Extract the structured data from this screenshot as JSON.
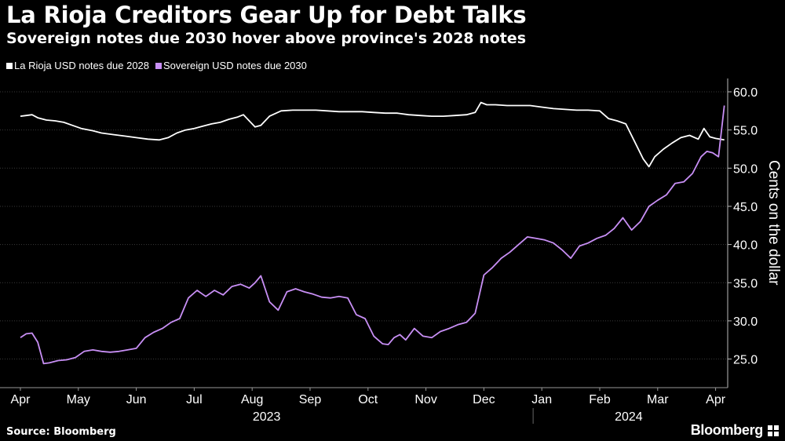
{
  "header": {
    "title": "La Rioja Creditors Gear Up for Debt Talks",
    "subtitle": "Sovereign notes due 2030 hover above province's 2028 notes"
  },
  "footer": {
    "source": "Source: Bloomberg",
    "brand": "Bloomberg"
  },
  "chart_data": {
    "type": "line",
    "title": "La Rioja Creditors Gear Up for Debt Talks",
    "subtitle": "Sovereign notes due 2030 hover above province's 2028 notes",
    "ylabel": "Cents on the dollar",
    "xlabel": "",
    "ylim": [
      21,
      62
    ],
    "yticks": [
      25.0,
      30.0,
      35.0,
      40.0,
      45.0,
      50.0,
      55.0,
      60.0
    ],
    "ytick_labels": [
      "25.0",
      "30.0",
      "35.0",
      "40.0",
      "45.0",
      "50.0",
      "55.0",
      "60.0"
    ],
    "xlim": [
      0,
      12.3
    ],
    "month_labels": [
      "Apr",
      "May",
      "Jun",
      "Jul",
      "Aug",
      "Sep",
      "Oct",
      "Nov",
      "Dec",
      "Jan",
      "Feb",
      "Mar",
      "Apr"
    ],
    "year_labels": [
      {
        "label": "2023",
        "x": 4.25
      },
      {
        "label": "2024",
        "x": 10.5
      }
    ],
    "year_divider_x": 8.85,
    "grid": true,
    "legend_position": "top-left",
    "series": [
      {
        "name": "La Rioja USD notes due 2028",
        "color": "#ffffff",
        "x": [
          0.0,
          0.1,
          0.2,
          0.3,
          0.45,
          0.6,
          0.75,
          0.9,
          1.05,
          1.25,
          1.4,
          1.6,
          1.8,
          2.0,
          2.2,
          2.4,
          2.55,
          2.7,
          2.85,
          3.0,
          3.15,
          3.3,
          3.45,
          3.6,
          3.75,
          3.85,
          3.95,
          4.05,
          4.15,
          4.3,
          4.5,
          4.7,
          4.9,
          5.1,
          5.3,
          5.5,
          5.7,
          5.9,
          6.1,
          6.3,
          6.5,
          6.7,
          6.9,
          7.1,
          7.3,
          7.5,
          7.7,
          7.85,
          7.95,
          8.05,
          8.2,
          8.4,
          8.6,
          8.8,
          9.0,
          9.2,
          9.4,
          9.6,
          9.8,
          10.0,
          10.15,
          10.3,
          10.45,
          10.6,
          10.75,
          10.85,
          10.95,
          11.1,
          11.25,
          11.4,
          11.55,
          11.7,
          11.8,
          11.9,
          12.0,
          12.15
        ],
        "values": [
          56.8,
          56.9,
          57.0,
          56.6,
          56.3,
          56.2,
          56.0,
          55.6,
          55.2,
          54.9,
          54.6,
          54.4,
          54.2,
          54.0,
          53.8,
          53.7,
          54.0,
          54.6,
          55.0,
          55.2,
          55.5,
          55.8,
          56.0,
          56.4,
          56.7,
          57.0,
          56.2,
          55.4,
          55.6,
          56.8,
          57.5,
          57.6,
          57.6,
          57.6,
          57.5,
          57.4,
          57.4,
          57.4,
          57.3,
          57.2,
          57.2,
          57.0,
          56.9,
          56.8,
          56.8,
          56.9,
          57.0,
          57.3,
          58.6,
          58.3,
          58.3,
          58.2,
          58.2,
          58.2,
          58.0,
          57.8,
          57.7,
          57.6,
          57.6,
          57.5,
          56.5,
          56.2,
          55.8,
          53.5,
          51.2,
          50.2,
          51.5,
          52.5,
          53.3,
          54.0,
          54.3,
          53.8,
          55.2,
          54.1,
          53.9,
          53.7
        ]
      },
      {
        "name": "Sovereign USD notes due 2030",
        "color": "#c88ff5",
        "x": [
          0.0,
          0.1,
          0.2,
          0.3,
          0.4,
          0.5,
          0.65,
          0.8,
          0.95,
          1.1,
          1.25,
          1.4,
          1.55,
          1.7,
          1.85,
          2.0,
          2.15,
          2.3,
          2.45,
          2.6,
          2.75,
          2.9,
          3.05,
          3.2,
          3.35,
          3.5,
          3.65,
          3.8,
          3.95,
          4.05,
          4.15,
          4.3,
          4.45,
          4.6,
          4.75,
          4.9,
          5.05,
          5.2,
          5.35,
          5.5,
          5.65,
          5.8,
          5.95,
          6.1,
          6.25,
          6.35,
          6.45,
          6.55,
          6.65,
          6.8,
          6.95,
          7.1,
          7.25,
          7.4,
          7.55,
          7.7,
          7.85,
          8.0,
          8.15,
          8.3,
          8.45,
          8.6,
          8.75,
          8.9,
          9.05,
          9.2,
          9.35,
          9.5,
          9.65,
          9.8,
          9.95,
          10.1,
          10.25,
          10.4,
          10.55,
          10.7,
          10.85,
          11.0,
          11.15,
          11.3,
          11.45,
          11.6,
          11.75,
          11.85,
          11.95,
          12.05,
          12.15
        ],
        "values": [
          27.8,
          28.3,
          28.4,
          27.2,
          24.4,
          24.5,
          24.8,
          24.9,
          25.2,
          26.0,
          26.2,
          26.0,
          25.9,
          26.0,
          26.2,
          26.4,
          27.8,
          28.5,
          29.0,
          29.8,
          30.3,
          33.0,
          34.0,
          33.2,
          34.0,
          33.4,
          34.5,
          34.8,
          34.3,
          35.0,
          35.9,
          32.5,
          31.4,
          33.8,
          34.2,
          33.8,
          33.5,
          33.1,
          33.0,
          33.2,
          33.0,
          30.8,
          30.3,
          28.0,
          27.0,
          26.9,
          27.8,
          28.2,
          27.5,
          29.0,
          28.0,
          27.8,
          28.6,
          29.0,
          29.5,
          29.8,
          31.0,
          36.0,
          37.0,
          38.2,
          39.0,
          40.0,
          41.0,
          40.8,
          40.6,
          40.2,
          39.3,
          38.2,
          39.8,
          40.2,
          40.8,
          41.2,
          42.1,
          43.5,
          41.9,
          43.0,
          45.0,
          45.8,
          46.5,
          48.0,
          48.2,
          49.3,
          51.5,
          52.2,
          52.0,
          51.5,
          58.2
        ]
      }
    ]
  }
}
